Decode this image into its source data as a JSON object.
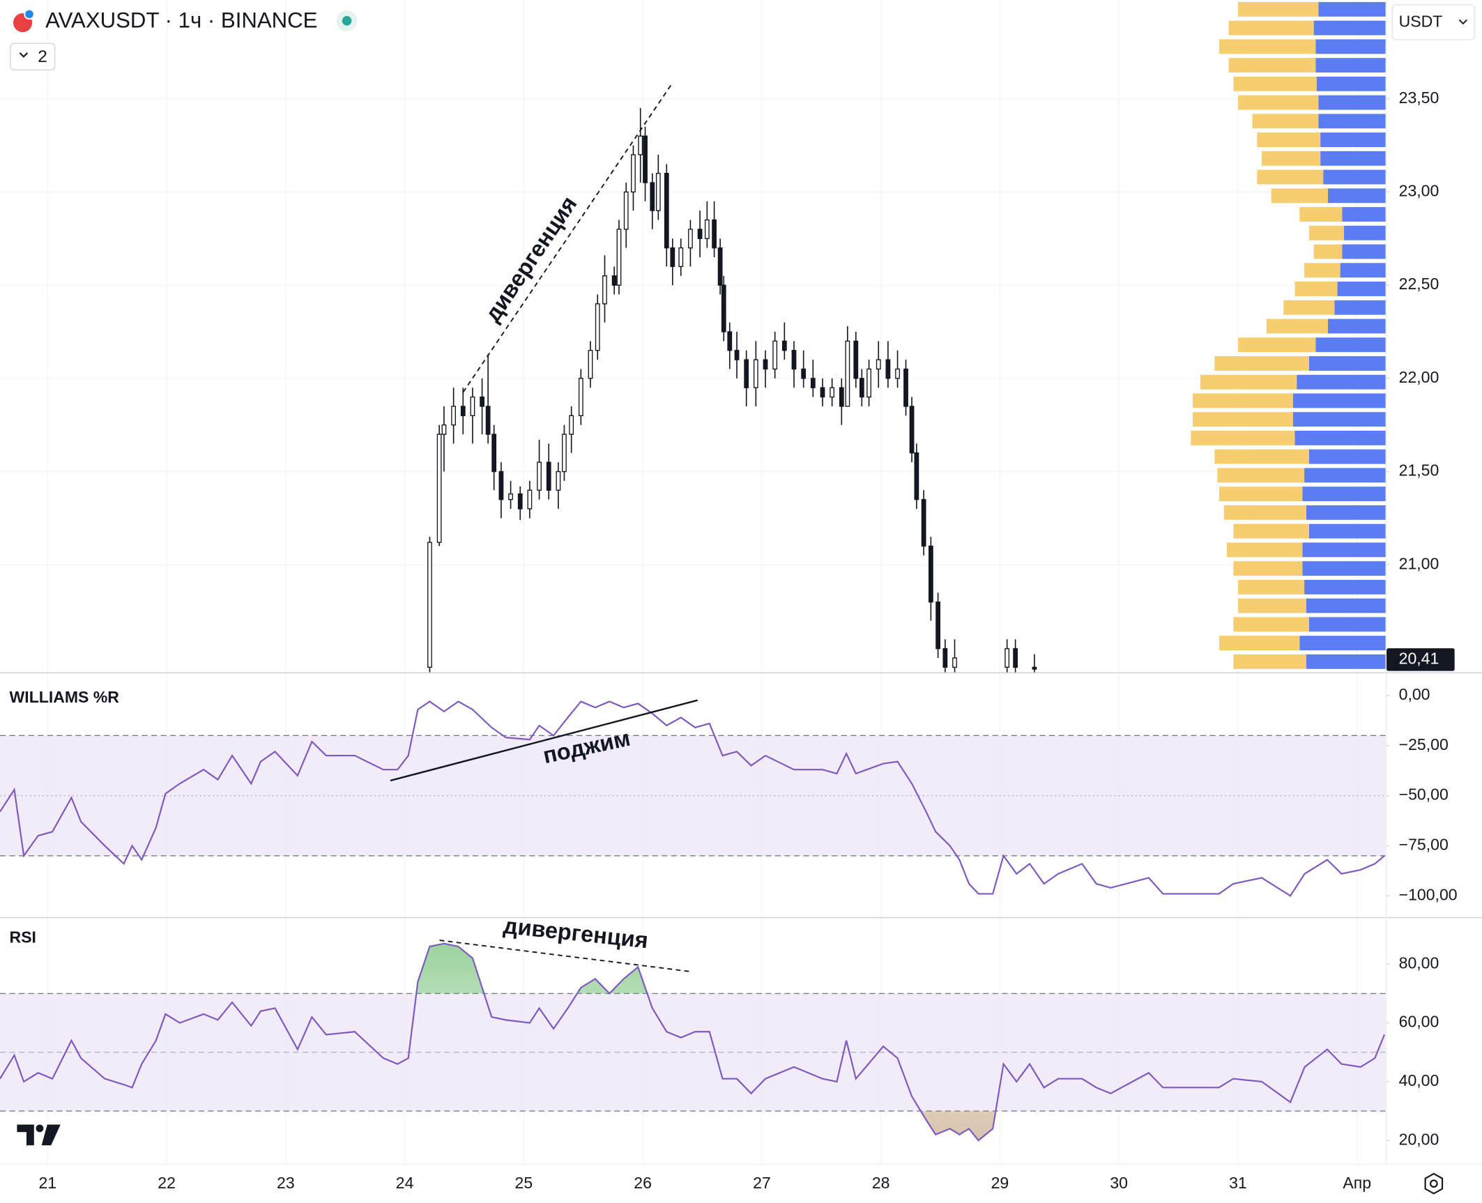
{
  "chart_data": [
    {
      "type": "candlestick",
      "title": "AVAXUSDT · 1ч · BINANCE",
      "interval_badge": "2",
      "currency": "USDT",
      "annotations": [
        "дивергенция"
      ],
      "color_up": "#ffffff",
      "color_down": "#131722",
      "outline": "#131722",
      "xlim": [
        20.6,
        32.24
      ],
      "ylim": [
        20.42,
        24.03
      ],
      "grid": true,
      "yticks": [
        {
          "value": 21,
          "label": "21,00"
        },
        {
          "value": 21.5,
          "label": "21,50"
        },
        {
          "value": 22,
          "label": "22,00"
        },
        {
          "value": 22.5,
          "label": "22,50"
        },
        {
          "value": 23,
          "label": "23,00"
        },
        {
          "value": 23.5,
          "label": "23,50"
        }
      ],
      "last_price": {
        "value": 20.41,
        "label": "20,41"
      },
      "x": [
        24.21,
        24.29,
        24.33,
        24.41,
        24.49,
        24.57,
        24.65,
        24.7,
        24.75,
        24.81,
        24.89,
        24.97,
        25.05,
        25.13,
        25.21,
        25.29,
        25.34,
        25.4,
        25.48,
        25.56,
        25.62,
        25.68,
        25.76,
        25.8,
        25.86,
        25.92,
        25.98,
        26.02,
        26.08,
        26.13,
        26.2,
        26.25,
        26.32,
        26.4,
        26.48,
        26.54,
        26.6,
        26.65,
        26.68,
        26.73,
        26.79,
        26.87,
        26.95,
        27.03,
        27.11,
        27.19,
        27.27,
        27.35,
        27.43,
        27.51,
        27.59,
        27.67,
        27.72,
        27.79,
        27.84,
        27.9,
        27.98,
        28.06,
        28.14,
        28.21,
        28.26,
        28.3,
        28.36,
        28.42,
        28.48,
        28.54,
        28.62,
        29.06,
        29.13,
        29.29
      ],
      "open": [
        20.45,
        21.12,
        21.7,
        21.75,
        21.85,
        21.8,
        21.9,
        21.85,
        21.7,
        21.5,
        21.35,
        21.38,
        21.3,
        21.4,
        21.55,
        21.4,
        21.5,
        21.7,
        21.8,
        22.0,
        22.15,
        22.4,
        22.55,
        22.5,
        22.8,
        23.0,
        23.2,
        23.3,
        23.05,
        22.9,
        23.1,
        22.7,
        22.6,
        22.7,
        22.8,
        22.75,
        22.85,
        22.7,
        22.5,
        22.25,
        22.15,
        22.1,
        21.95,
        22.1,
        22.05,
        22.2,
        22.15,
        22.05,
        22.0,
        21.95,
        21.9,
        21.95,
        21.85,
        22.2,
        22.0,
        21.9,
        22.05,
        22.1,
        22.0,
        22.05,
        21.85,
        21.6,
        21.35,
        21.1,
        20.8,
        20.55,
        20.45,
        20.45,
        20.55,
        20.45
      ],
      "high": [
        21.15,
        21.75,
        21.85,
        21.95,
        21.95,
        21.95,
        22.0,
        22.13,
        21.75,
        21.55,
        21.45,
        21.42,
        21.45,
        21.67,
        21.65,
        21.55,
        21.75,
        21.85,
        22.05,
        22.2,
        22.45,
        22.66,
        22.6,
        22.85,
        23.05,
        23.25,
        23.45,
        23.35,
        23.1,
        23.2,
        23.15,
        22.75,
        22.75,
        22.85,
        22.9,
        22.95,
        22.95,
        22.75,
        22.55,
        22.3,
        22.25,
        22.15,
        22.2,
        22.15,
        22.25,
        22.3,
        22.2,
        22.15,
        22.1,
        22.0,
        22.0,
        22.0,
        22.28,
        22.25,
        22.05,
        22.1,
        22.2,
        22.2,
        22.15,
        22.1,
        21.9,
        21.65,
        21.4,
        21.15,
        20.85,
        20.6,
        20.6,
        20.6,
        20.6,
        20.52
      ],
      "low": [
        20.42,
        21.1,
        21.5,
        21.65,
        21.7,
        21.65,
        21.7,
        21.65,
        21.4,
        21.25,
        21.3,
        21.24,
        21.25,
        21.35,
        21.35,
        21.3,
        21.45,
        21.6,
        21.75,
        21.95,
        22.1,
        22.3,
        22.45,
        22.45,
        22.7,
        22.9,
        23.05,
        22.95,
        22.8,
        22.85,
        22.6,
        22.5,
        22.55,
        22.6,
        22.65,
        22.7,
        22.65,
        22.45,
        22.2,
        22.05,
        22.0,
        21.85,
        21.85,
        21.95,
        22.0,
        22.1,
        21.95,
        21.95,
        21.9,
        21.85,
        21.85,
        21.75,
        21.85,
        21.95,
        21.85,
        21.85,
        21.95,
        21.95,
        21.95,
        21.8,
        21.55,
        21.3,
        21.05,
        20.7,
        20.5,
        20.42,
        20.42,
        20.42,
        20.42,
        20.42
      ],
      "close": [
        21.12,
        21.7,
        21.75,
        21.85,
        21.8,
        21.9,
        21.85,
        21.7,
        21.5,
        21.35,
        21.38,
        21.3,
        21.4,
        21.55,
        21.4,
        21.5,
        21.7,
        21.8,
        22.0,
        22.15,
        22.4,
        22.55,
        22.5,
        22.8,
        23.0,
        23.2,
        23.3,
        23.05,
        22.9,
        23.1,
        22.7,
        22.6,
        22.7,
        22.8,
        22.75,
        22.85,
        22.7,
        22.5,
        22.25,
        22.15,
        22.1,
        21.95,
        22.1,
        22.05,
        22.2,
        22.15,
        22.05,
        22.0,
        21.95,
        21.9,
        21.95,
        21.85,
        22.2,
        22.0,
        21.9,
        22.05,
        22.1,
        22.0,
        22.05,
        21.85,
        21.6,
        21.35,
        21.1,
        20.8,
        20.55,
        20.45,
        20.5,
        20.55,
        20.45,
        20.44
      ]
    },
    {
      "type": "volume_profile",
      "levels": [
        23.98,
        23.88,
        23.78,
        23.68,
        23.58,
        23.48,
        23.38,
        23.28,
        23.18,
        23.08,
        22.98,
        22.88,
        22.78,
        22.68,
        22.58,
        22.48,
        22.38,
        22.28,
        22.18,
        22.08,
        21.98,
        21.88,
        21.78,
        21.68,
        21.58,
        21.48,
        21.38,
        21.28,
        21.18,
        21.08,
        20.98,
        20.88,
        20.78,
        20.68,
        20.58,
        20.48
      ],
      "series": [
        {
          "color": "#5b7cf2",
          "values": [
            71,
            76,
            74,
            74,
            73,
            71,
            71,
            69,
            69,
            66,
            61,
            46,
            44,
            46,
            48,
            51,
            54,
            61,
            74,
            81,
            94,
            98,
            98,
            96,
            81,
            86,
            88,
            84,
            81,
            88,
            88,
            86,
            84,
            81,
            91,
            84
          ]
        },
        {
          "color": "#f6cd6f",
          "values": [
            85,
            90,
            102,
            92,
            88,
            85,
            70,
            67,
            62,
            70,
            60,
            45,
            37,
            30,
            38,
            45,
            54,
            65,
            82,
            100,
            102,
            106,
            106,
            110,
            100,
            92,
            88,
            87,
            80,
            80,
            73,
            70,
            72,
            80,
            85,
            77
          ]
        }
      ]
    },
    {
      "type": "line",
      "title": "WILLIAMS %R",
      "annotations": [
        "поджим"
      ],
      "color": "#7e57c2",
      "band_color": "#ede7f6",
      "bands": [
        -20,
        -80
      ],
      "midline": -50,
      "xlim": [
        20.6,
        32.24
      ],
      "ylim": [
        -110.4,
        11.3
      ],
      "yticks": [
        {
          "value": 0,
          "label": "0,00"
        },
        {
          "value": -25,
          "label": "−25,00"
        },
        {
          "value": -50,
          "label": "−50,00"
        },
        {
          "value": -75,
          "label": "−75,00"
        },
        {
          "value": -100,
          "label": "−100,00"
        }
      ],
      "x": [
        20.6,
        20.72,
        20.8,
        20.92,
        21.04,
        21.2,
        21.28,
        21.48,
        21.64,
        21.71,
        21.79,
        21.91,
        21.99,
        22.11,
        22.31,
        22.43,
        22.55,
        22.71,
        22.79,
        22.91,
        23.1,
        23.22,
        23.34,
        23.58,
        23.82,
        23.94,
        24.03,
        24.11,
        24.21,
        24.33,
        24.45,
        24.57,
        24.73,
        24.85,
        25.05,
        25.13,
        25.25,
        25.37,
        25.48,
        25.6,
        25.72,
        25.84,
        25.96,
        26.08,
        26.2,
        26.32,
        26.44,
        26.56,
        26.67,
        26.79,
        26.91,
        27.03,
        27.27,
        27.51,
        27.63,
        27.71,
        27.79,
        28.02,
        28.14,
        28.26,
        28.38,
        28.46,
        28.58,
        28.66,
        28.74,
        28.82,
        28.94,
        29.03,
        29.14,
        29.25,
        29.37,
        29.49,
        29.69,
        29.81,
        29.93,
        30.25,
        30.37,
        30.6,
        30.84,
        30.96,
        31.2,
        31.44,
        31.56,
        31.75,
        31.87,
        32.03,
        32.15,
        32.23
      ],
      "values": [
        -58,
        -47,
        -80,
        -70,
        -68,
        -51,
        -63,
        -75,
        -84,
        -75,
        -82,
        -66,
        -49,
        -44,
        -37,
        -42,
        -30,
        -44,
        -33,
        -28,
        -40,
        -23,
        -30,
        -30,
        -37,
        -37,
        -30,
        -7,
        -3,
        -8,
        -3,
        -7,
        -16,
        -21,
        -22,
        -15,
        -20,
        -11,
        -3,
        -6,
        -3,
        -6,
        -4,
        -9,
        -15,
        -11,
        -16,
        -14,
        -30,
        -28,
        -35,
        -30,
        -37,
        -37,
        -39,
        -29,
        -39,
        -34,
        -33,
        -44,
        -58,
        -68,
        -75,
        -82,
        -94,
        -99,
        -99,
        -80,
        -89,
        -84,
        -94,
        -89,
        -84,
        -94,
        -96,
        -91,
        -99,
        -99,
        -99,
        -94,
        -91,
        -100,
        -89,
        -82,
        -89,
        -87,
        -84,
        -80
      ]
    },
    {
      "type": "line",
      "title": "RSI",
      "annotations": [
        "дивергенция"
      ],
      "color": "#7e57c2",
      "band_color": "#ede7f6",
      "bands": [
        70,
        30
      ],
      "midline": 50,
      "overbought_color": "#4caf50",
      "oversold_color": "#b8946a",
      "xlim": [
        20.6,
        32.24
      ],
      "ylim": [
        11.9,
        95.5
      ],
      "yticks": [
        {
          "value": 20,
          "label": "20,00"
        },
        {
          "value": 40,
          "label": "40,00"
        },
        {
          "value": 60,
          "label": "60,00"
        },
        {
          "value": 80,
          "label": "80,00"
        }
      ],
      "xticks": [
        21,
        22,
        23,
        24,
        25,
        26,
        27,
        28,
        29,
        30,
        31,
        {
          "value": 32,
          "label": "Апр"
        }
      ],
      "x": [
        20.6,
        20.72,
        20.8,
        20.92,
        21.04,
        21.2,
        21.28,
        21.48,
        21.64,
        21.71,
        21.79,
        21.91,
        21.99,
        22.11,
        22.31,
        22.43,
        22.55,
        22.71,
        22.79,
        22.91,
        23.1,
        23.22,
        23.34,
        23.58,
        23.82,
        23.94,
        24.03,
        24.11,
        24.21,
        24.33,
        24.45,
        24.57,
        24.73,
        24.85,
        25.05,
        25.13,
        25.25,
        25.37,
        25.48,
        25.6,
        25.72,
        25.84,
        25.96,
        26.08,
        26.2,
        26.32,
        26.44,
        26.56,
        26.67,
        26.79,
        26.91,
        27.03,
        27.27,
        27.51,
        27.63,
        27.71,
        27.79,
        28.02,
        28.14,
        28.26,
        28.38,
        28.46,
        28.58,
        28.66,
        28.74,
        28.82,
        28.94,
        29.03,
        29.14,
        29.25,
        29.37,
        29.49,
        29.69,
        29.81,
        29.93,
        30.25,
        30.37,
        30.6,
        30.84,
        30.96,
        31.2,
        31.44,
        31.56,
        31.75,
        31.87,
        32.03,
        32.15,
        32.23
      ],
      "values": [
        41,
        49,
        40,
        43,
        41,
        54,
        48,
        41,
        39,
        38,
        46,
        54,
        63,
        60,
        63,
        61,
        67,
        59,
        64,
        65,
        51,
        62,
        56,
        57,
        48,
        46,
        48,
        74,
        86,
        87,
        86,
        82,
        62,
        61,
        60,
        65,
        58,
        65,
        72,
        75,
        70,
        75,
        79,
        65,
        57,
        55,
        57,
        57,
        41,
        41,
        36,
        41,
        45,
        41,
        40,
        54,
        41,
        52,
        48,
        35,
        27,
        22,
        24,
        22,
        24,
        20,
        24,
        46,
        40,
        46,
        38,
        41,
        41,
        38,
        36,
        43,
        38,
        38,
        38,
        41,
        40,
        33,
        45,
        51,
        46,
        45,
        48,
        56
      ]
    }
  ]
}
